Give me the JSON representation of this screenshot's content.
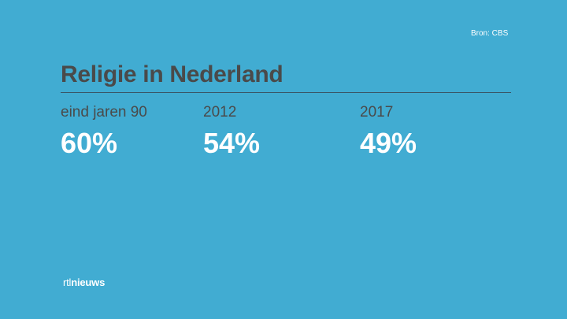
{
  "source": "Bron: CBS",
  "title": "Religie in Nederland",
  "stats": [
    {
      "label": "eind jaren 90",
      "value": "60%"
    },
    {
      "label": "2012",
      "value": "54%"
    },
    {
      "label": "2017",
      "value": "49%"
    }
  ],
  "logo": {
    "prefix": "rtl",
    "suffix": "nieuws"
  },
  "colors": {
    "background": "#41acd2",
    "title": "#4a4a4a",
    "value": "#ffffff"
  }
}
